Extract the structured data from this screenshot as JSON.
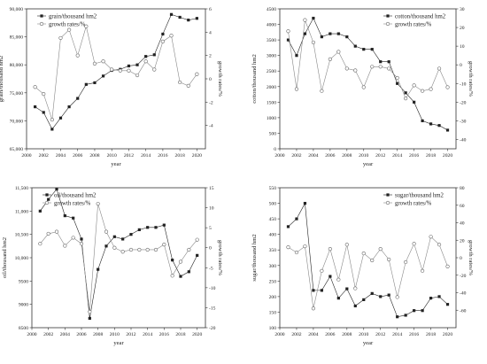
{
  "chart_data": [
    {
      "type": "line",
      "x": [
        2001,
        2002,
        2003,
        2004,
        2005,
        2006,
        2007,
        2008,
        2009,
        2010,
        2011,
        2012,
        2013,
        2014,
        2015,
        2016,
        2017,
        2018,
        2019,
        2020
      ],
      "xlabel": "year",
      "xlim": [
        2000,
        2021
      ],
      "xticks": [
        2000,
        2002,
        2004,
        2006,
        2008,
        2010,
        2012,
        2014,
        2016,
        2018,
        2020
      ],
      "ylabel": "grain/thousand hm2",
      "ylim": [
        65000,
        90000
      ],
      "yticks": [
        65000,
        70000,
        75000,
        80000,
        85000,
        90000
      ],
      "ytick_labels": [
        "65,000",
        "70,000",
        "75,000",
        "80,000",
        "85,000",
        "90,000"
      ],
      "y2label": "growth rates/%",
      "y2lim": [
        -6,
        6
      ],
      "y2ticks": [
        -4,
        -2,
        0,
        2,
        4,
        6
      ],
      "series": [
        {
          "name": "grain/thousand hm2",
          "axis": "left",
          "marker": "square",
          "values": [
            72500,
            71500,
            68500,
            70500,
            72500,
            74000,
            76500,
            76800,
            78000,
            79000,
            79200,
            79800,
            80000,
            81500,
            81800,
            85500,
            89000,
            88500,
            88000,
            88300
          ]
        },
        {
          "name": "growth rates/%",
          "axis": "right",
          "marker": "circle",
          "values": [
            -0.7,
            -1.3,
            -3.5,
            3.5,
            4.2,
            2.0,
            4.5,
            1.3,
            1.5,
            0.8,
            0.7,
            0.7,
            0.3,
            1.5,
            0.8,
            3.2,
            3.7,
            -0.3,
            -0.6,
            0.4
          ]
        }
      ],
      "legend_position": "top-left"
    },
    {
      "type": "line",
      "x": [
        2001,
        2002,
        2003,
        2004,
        2005,
        2006,
        2007,
        2008,
        2009,
        2010,
        2011,
        2012,
        2013,
        2014,
        2015,
        2016,
        2017,
        2018,
        2019,
        2020
      ],
      "xlabel": "year",
      "xlim": [
        2000,
        2021
      ],
      "xticks": [
        2000,
        2002,
        2004,
        2006,
        2008,
        2010,
        2012,
        2014,
        2016,
        2018,
        2020
      ],
      "ylabel": "cotton/thousand hm2",
      "ylim": [
        0,
        4500
      ],
      "yticks": [
        0,
        500,
        1000,
        1500,
        2000,
        2500,
        3000,
        3500,
        4000,
        4500
      ],
      "ytick_labels": [
        "0",
        "500",
        "1000",
        "1500",
        "2000",
        "2500",
        "3000",
        "3500",
        "4000",
        "4500"
      ],
      "y2label": "growth rates/%",
      "y2lim": [
        -45,
        30
      ],
      "y2ticks": [
        -40,
        -30,
        -20,
        -10,
        0,
        10,
        20,
        30
      ],
      "series": [
        {
          "name": "cotton/thousand hm2",
          "axis": "left",
          "marker": "square",
          "values": [
            3500,
            3000,
            3700,
            4200,
            3600,
            3700,
            3700,
            3600,
            3300,
            3200,
            3200,
            2800,
            2800,
            2100,
            1800,
            1500,
            900,
            800,
            750,
            600
          ]
        },
        {
          "name": "growth rates/%",
          "axis": "right",
          "marker": "circle",
          "values": [
            18,
            -13,
            24,
            12,
            -14,
            3,
            7,
            -2,
            -3,
            -12,
            -1,
            -1,
            -2,
            -7,
            -18,
            -11,
            -14,
            -13,
            -2,
            -12
          ]
        }
      ],
      "legend_position": "top-right"
    },
    {
      "type": "line",
      "x": [
        2001,
        2002,
        2003,
        2004,
        2005,
        2006,
        2007,
        2008,
        2009,
        2010,
        2011,
        2012,
        2013,
        2014,
        2015,
        2016,
        2017,
        2018,
        2019,
        2020
      ],
      "xlabel": "year",
      "xlim": [
        2000,
        2021
      ],
      "xticks": [
        2000,
        2002,
        2004,
        2006,
        2008,
        2010,
        2012,
        2014,
        2016,
        2018,
        2020
      ],
      "ylabel": "oil/thousand hm2",
      "ylim": [
        8500,
        11500
      ],
      "yticks": [
        8500,
        9000,
        9500,
        10000,
        10500,
        11000,
        11500
      ],
      "ytick_labels": [
        "8500",
        "9000",
        "9500",
        "10,000",
        "10,500",
        "11,000",
        "11,500"
      ],
      "y2label": "growth rates/%",
      "y2lim": [
        -20,
        15
      ],
      "y2ticks": [
        -20,
        -15,
        -10,
        -5,
        0,
        5,
        10,
        15
      ],
      "series": [
        {
          "name": "oil/thousand hm2",
          "axis": "left",
          "marker": "square",
          "values": [
            11000,
            11250,
            11470,
            10900,
            10850,
            10400,
            8700,
            9750,
            10250,
            10450,
            10400,
            10500,
            10600,
            10650,
            10650,
            10700,
            9950,
            9600,
            9700,
            10050
          ]
        },
        {
          "name": "growth rates/%",
          "axis": "right",
          "marker": "circle",
          "values": [
            1,
            3.5,
            4,
            0.5,
            2.5,
            1,
            -16,
            11,
            4,
            0,
            -1,
            -0.5,
            -0.5,
            -0.5,
            -0.5,
            0.8,
            -7,
            -3.5,
            -0.5,
            2
          ]
        }
      ],
      "legend_position": "top-left"
    },
    {
      "type": "line",
      "x": [
        2001,
        2002,
        2003,
        2004,
        2005,
        2006,
        2007,
        2008,
        2009,
        2010,
        2011,
        2012,
        2013,
        2014,
        2015,
        2016,
        2017,
        2018,
        2019,
        2020
      ],
      "xlabel": "year",
      "xlim": [
        2000,
        2021
      ],
      "xticks": [
        2000,
        2002,
        2004,
        2006,
        2008,
        2010,
        2012,
        2014,
        2016,
        2018,
        2020
      ],
      "ylabel": "sugar/thousand hm2",
      "ylim": [
        100,
        550
      ],
      "yticks": [
        100,
        150,
        200,
        250,
        300,
        350,
        400,
        450,
        500,
        550
      ],
      "ytick_labels": [
        "100",
        "150",
        "200",
        "250",
        "300",
        "350",
        "400",
        "450",
        "500",
        "550"
      ],
      "y2label": "growth rates/%",
      "y2lim": [
        -80,
        80
      ],
      "y2ticks": [
        -60,
        -40,
        -20,
        0,
        20,
        40,
        60,
        80
      ],
      "series": [
        {
          "name": "sugar/thousand hm2",
          "axis": "left",
          "marker": "square",
          "values": [
            425,
            450,
            500,
            220,
            220,
            265,
            195,
            225,
            170,
            190,
            210,
            200,
            205,
            135,
            140,
            155,
            155,
            195,
            200,
            175
          ]
        },
        {
          "name": "growth rates/%",
          "axis": "right",
          "marker": "circle",
          "values": [
            12,
            6,
            13,
            -58,
            -15,
            10,
            -25,
            15,
            -35,
            5,
            -3,
            10,
            -2,
            -45,
            -5,
            16,
            -15,
            24,
            15,
            -10
          ]
        }
      ],
      "legend_position": "top-right"
    }
  ]
}
